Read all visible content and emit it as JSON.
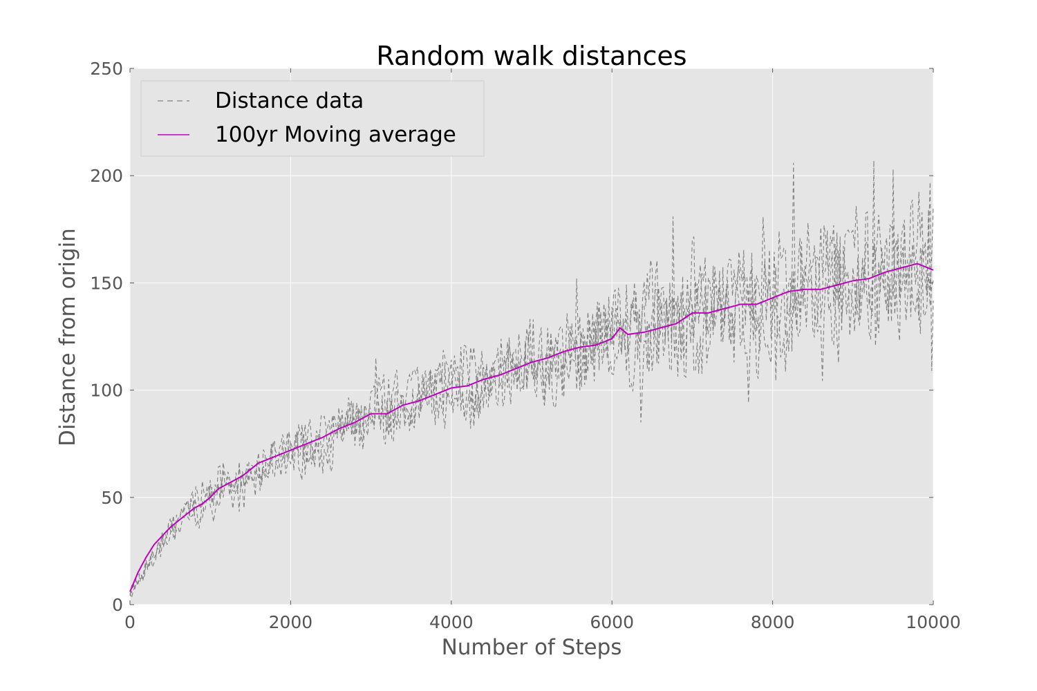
{
  "chart_data": {
    "type": "line",
    "title": "Random walk distances",
    "xlabel": "Number of Steps",
    "ylabel": "Distance from origin",
    "xlim": [
      0,
      10000
    ],
    "ylim": [
      0,
      250
    ],
    "xticks": [
      0,
      2000,
      4000,
      6000,
      8000,
      10000
    ],
    "xtick_labels": [
      "0",
      "2000",
      "4000",
      "6000",
      "8000",
      "10000"
    ],
    "yticks": [
      0,
      50,
      100,
      150,
      200,
      250
    ],
    "ytick_labels": [
      "0",
      "50",
      "100",
      "150",
      "200",
      "250"
    ],
    "grid": true,
    "legend_position": "top-left",
    "series": [
      {
        "name": "Distance data",
        "style": "dashed",
        "color": "#808080",
        "trend": {
          "x": [
            0,
            500,
            1000,
            2000,
            3000,
            4000,
            5000,
            6000,
            7000,
            8000,
            9000,
            10000
          ],
          "y": [
            5,
            35,
            50,
            71,
            87,
            100,
            113,
            123,
            133,
            143,
            152,
            158
          ]
        },
        "spread": {
          "x": [
            0,
            1000,
            2000,
            4000,
            6000,
            8000,
            10000
          ],
          "half_width": [
            3,
            10,
            12,
            15,
            22,
            28,
            30
          ]
        },
        "peaks": [
          {
            "x": 3050,
            "y": 115
          },
          {
            "x": 5550,
            "y": 152
          },
          {
            "x": 6750,
            "y": 181
          },
          {
            "x": 8250,
            "y": 206
          },
          {
            "x": 9250,
            "y": 207
          },
          {
            "x": 9500,
            "y": 203
          },
          {
            "x": 9950,
            "y": 197
          }
        ],
        "dips": [
          {
            "x": 6350,
            "y": 85
          },
          {
            "x": 7700,
            "y": 94
          },
          {
            "x": 9970,
            "y": 109
          }
        ]
      },
      {
        "name": "100yr Moving average",
        "style": "solid",
        "color": "#bf00bf",
        "x": [
          0,
          100,
          200,
          300,
          400,
          500,
          600,
          700,
          800,
          900,
          1000,
          1100,
          1200,
          1400,
          1600,
          1800,
          2000,
          2200,
          2400,
          2600,
          2800,
          3000,
          3200,
          3400,
          3600,
          3800,
          4000,
          4200,
          4400,
          4600,
          4800,
          5000,
          5200,
          5400,
          5600,
          5800,
          6000,
          6100,
          6200,
          6400,
          6600,
          6800,
          7000,
          7200,
          7400,
          7600,
          7800,
          8000,
          8200,
          8400,
          8600,
          8800,
          9000,
          9200,
          9400,
          9600,
          9800,
          10000
        ],
        "y": [
          6,
          15,
          22,
          28,
          32,
          36,
          39,
          42,
          45,
          47,
          50,
          54,
          56,
          60,
          66,
          69,
          72,
          75,
          78,
          82,
          85,
          89,
          89,
          93,
          95,
          98,
          101,
          102,
          105,
          107,
          110,
          113,
          115,
          118,
          120,
          121,
          124,
          129,
          126,
          127,
          129,
          131,
          136,
          136,
          138,
          140,
          140,
          143,
          146,
          147,
          147,
          149,
          151,
          152,
          155,
          157,
          159,
          156
        ]
      }
    ]
  }
}
